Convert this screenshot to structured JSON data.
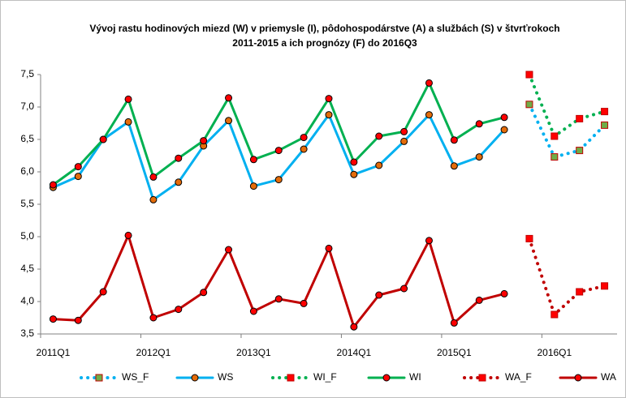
{
  "chart_data": {
    "type": "line",
    "title": [
      "Vývoj rastu hodinových miezd (W) v priemysle (I), pôdohospodárstve (A) a službách (S) v štvrťrokoch",
      "2011-2015 a ich prognózy (F) do 2016Q3"
    ],
    "categories": [
      "2011Q1",
      null,
      null,
      null,
      "2012Q1",
      null,
      null,
      null,
      "2013Q1",
      null,
      null,
      null,
      "2014Q1",
      null,
      null,
      null,
      "2015Q1",
      null,
      null,
      null,
      "2016Q1",
      null,
      null
    ],
    "ylim": [
      3.5,
      7.5
    ],
    "yticks": [
      {
        "value": 3.5,
        "label": "3,5"
      },
      {
        "value": 4,
        "label": "4,0"
      },
      {
        "value": 4.5,
        "label": "4,5"
      },
      {
        "value": 5,
        "label": "5,0"
      },
      {
        "value": 5.5,
        "label": "5,5"
      },
      {
        "value": 6,
        "label": "6,0"
      },
      {
        "value": 6.5,
        "label": "6,5"
      },
      {
        "value": 7,
        "label": "7,0"
      },
      {
        "value": 7.5,
        "label": "7,5"
      }
    ],
    "grid": false,
    "legend": "bottom",
    "series": [
      {
        "name": "WS_F",
        "color": "#00b0f0",
        "dashed": true,
        "marker": "square",
        "marker_color": "#70ad47",
        "values": [
          null,
          null,
          null,
          null,
          null,
          null,
          null,
          null,
          null,
          null,
          null,
          null,
          null,
          null,
          null,
          null,
          null,
          null,
          null,
          7.04,
          6.23,
          6.33,
          6.72
        ]
      },
      {
        "name": "WS",
        "color": "#00b0f0",
        "dashed": false,
        "marker": "circle",
        "marker_color": "#e46c0a",
        "values": [
          5.76,
          5.93,
          6.5,
          6.77,
          5.57,
          5.84,
          6.4,
          6.79,
          5.78,
          5.88,
          6.35,
          6.88,
          5.96,
          6.1,
          6.47,
          6.88,
          6.09,
          6.23,
          6.65,
          null,
          null,
          null,
          null
        ]
      },
      {
        "name": "WI_F",
        "color": "#00b050",
        "dashed": true,
        "marker": "square",
        "marker_color": "#ff0000",
        "values": [
          null,
          null,
          null,
          null,
          null,
          null,
          null,
          null,
          null,
          null,
          null,
          null,
          null,
          null,
          null,
          null,
          null,
          null,
          null,
          7.5,
          6.55,
          6.82,
          6.93
        ]
      },
      {
        "name": "WI",
        "color": "#00b050",
        "dashed": false,
        "marker": "circle",
        "marker_color": "#ff0000",
        "values": [
          5.8,
          6.08,
          6.5,
          7.12,
          5.92,
          6.21,
          6.48,
          7.14,
          6.19,
          6.33,
          6.53,
          7.13,
          6.15,
          6.55,
          6.62,
          7.37,
          6.49,
          6.74,
          6.84,
          null,
          null,
          null,
          null
        ]
      },
      {
        "name": "WA_F",
        "color": "#c00000",
        "dashed": true,
        "marker": "square",
        "marker_color": "#ff0000",
        "values": [
          null,
          null,
          null,
          null,
          null,
          null,
          null,
          null,
          null,
          null,
          null,
          null,
          null,
          null,
          null,
          null,
          null,
          null,
          null,
          4.97,
          3.8,
          4.15,
          4.24
        ]
      },
      {
        "name": "WA",
        "color": "#c00000",
        "dashed": false,
        "marker": "circle",
        "marker_color": "#ff0000",
        "values": [
          3.73,
          3.71,
          4.15,
          5.02,
          3.75,
          3.88,
          4.14,
          4.8,
          3.85,
          4.04,
          3.97,
          4.82,
          3.61,
          4.1,
          4.2,
          4.94,
          3.67,
          4.02,
          4.12,
          null,
          null,
          null,
          null
        ]
      }
    ]
  }
}
